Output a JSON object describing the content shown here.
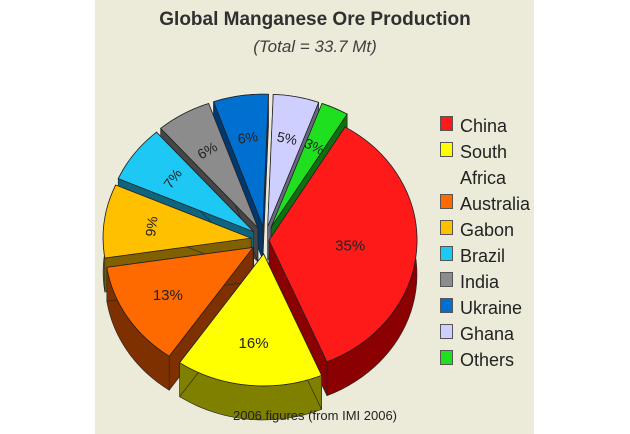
{
  "chart_data": {
    "type": "pie",
    "title": "Global Manganese Ore Production",
    "subtitle": "(Total = 33.7 Mt)",
    "footnote": "2006 figures (from IMI 2006)",
    "legend_position": "right",
    "slices": [
      {
        "label": "China",
        "value": 35,
        "value_label": "35%",
        "color": "#ff1a1a",
        "side": "#8b0000"
      },
      {
        "label": "South Africa",
        "value": 16,
        "value_label": "16%",
        "color": "#ffff00",
        "side": "#7f7f00"
      },
      {
        "label": "Australia",
        "value": 13,
        "value_label": "13%",
        "color": "#ff6a00",
        "side": "#7f3000"
      },
      {
        "label": "Gabon",
        "value": 9,
        "value_label": "9%",
        "color": "#ffc000",
        "side": "#806000"
      },
      {
        "label": "Brazil",
        "value": 7,
        "value_label": "7%",
        "color": "#1ec8f5",
        "side": "#0f6480"
      },
      {
        "label": "India",
        "value": 6,
        "value_label": "6%",
        "color": "#8c8c8c",
        "side": "#464646"
      },
      {
        "label": "Ukraine",
        "value": 6,
        "value_label": "6%",
        "color": "#0070d0",
        "side": "#003870"
      },
      {
        "label": "Ghana",
        "value": 5,
        "value_label": "5%",
        "color": "#cfcfff",
        "side": "#686880"
      },
      {
        "label": "Others",
        "value": 3,
        "value_label": "3%",
        "color": "#1ee01e",
        "side": "#0f700f"
      }
    ]
  }
}
